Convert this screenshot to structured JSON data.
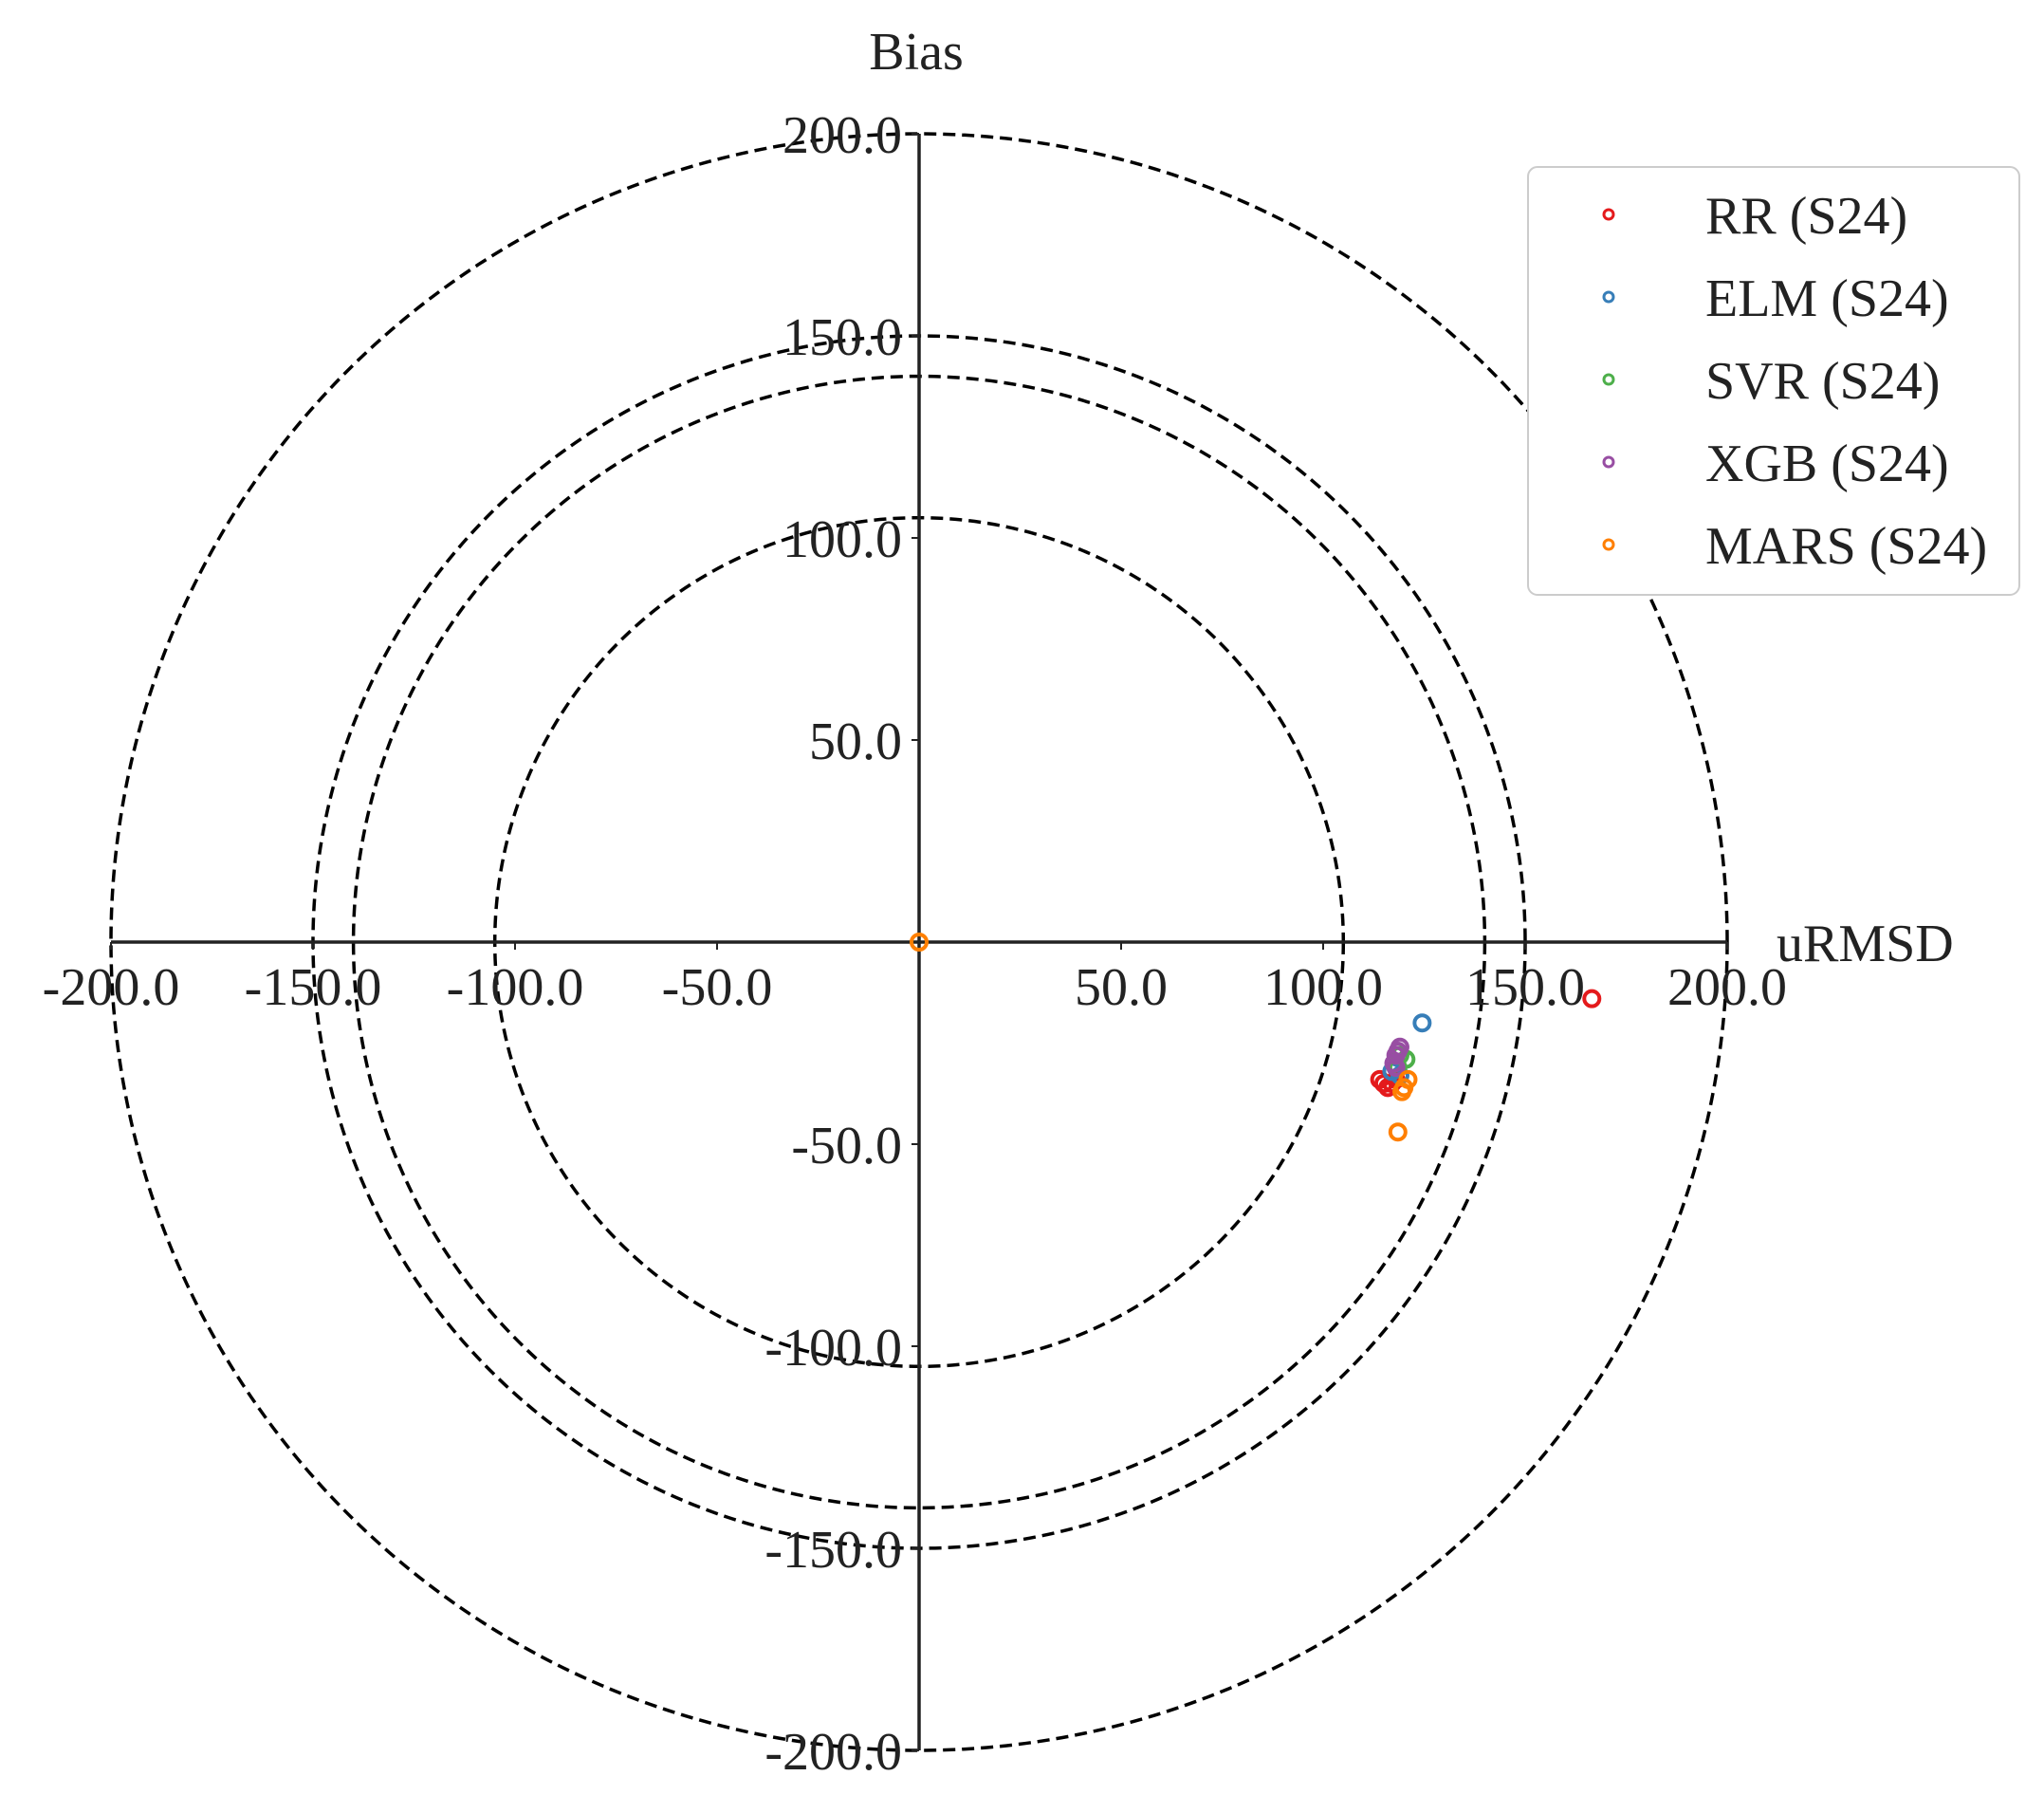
{
  "chart_data": {
    "type": "scatter",
    "subtype": "target-diagram",
    "title": "",
    "xlabel": "uRMSD",
    "ylabel": "Bias",
    "xlim": [
      -200,
      200
    ],
    "ylim": [
      -200,
      200
    ],
    "x_ticks": [
      "-200.0",
      "-150.0",
      "-100.0",
      "-50.0",
      "50.0",
      "100.0",
      "150.0",
      "200.0"
    ],
    "y_ticks": [
      "200.0",
      "150.0",
      "100.0",
      "50.0",
      "-50.0",
      "-100.0",
      "-150.0",
      "-200.0"
    ],
    "reference_circles": [
      105,
      140,
      150,
      200
    ],
    "circle_style": "dashed",
    "grid": false,
    "legend_position": "top-right",
    "marker": "open-circle",
    "series": [
      {
        "name": "RR (S24)",
        "color": "#e41a1c",
        "points": [
          [
            166.5,
            -14
          ],
          [
            114,
            -34
          ],
          [
            115,
            -35
          ],
          [
            116,
            -36
          ],
          [
            117,
            -35
          ],
          [
            118,
            -34
          ]
        ]
      },
      {
        "name": "ELM (S24)",
        "color": "#377eb8",
        "points": [
          [
            124.5,
            -20
          ],
          [
            117,
            -32
          ],
          [
            118,
            -31
          ],
          [
            119,
            -33
          ]
        ]
      },
      {
        "name": "SVR (S24)",
        "color": "#4daf4a",
        "points": [
          [
            120.5,
            -29
          ],
          [
            119,
            -28
          ],
          [
            118.5,
            -31
          ]
        ]
      },
      {
        "name": "XGB (S24)",
        "color": "#984ea3",
        "points": [
          [
            118.5,
            -27
          ],
          [
            118,
            -28
          ],
          [
            117.5,
            -30
          ],
          [
            119,
            -26
          ],
          [
            118,
            -31
          ]
        ]
      },
      {
        "name": "MARS (S24)",
        "color": "#ff7f00",
        "points": [
          [
            0,
            0
          ],
          [
            121,
            -34
          ],
          [
            119.5,
            -37
          ],
          [
            118.5,
            -47
          ],
          [
            120,
            -36
          ]
        ]
      }
    ]
  }
}
